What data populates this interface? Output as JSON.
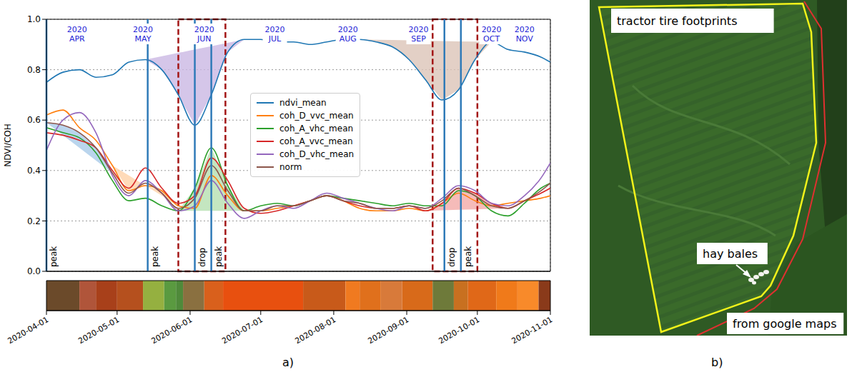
{
  "chart_data": {
    "type": "line",
    "panel_label": "a)",
    "y_label": "NDVI/COH",
    "grid": true,
    "legend": "center",
    "tick_labels": "y",
    "x": [
      "2020-04-01",
      "2020-04-08",
      "2020-04-15",
      "2020-04-22",
      "2020-04-29",
      "2020-05-06",
      "2020-05-13",
      "2020-05-20",
      "2020-05-27",
      "2020-06-03",
      "2020-06-10",
      "2020-06-17",
      "2020-06-24",
      "2020-07-01",
      "2020-07-08",
      "2020-07-15",
      "2020-07-22",
      "2020-07-29",
      "2020-08-05",
      "2020-08-12",
      "2020-08-19",
      "2020-08-26",
      "2020-09-02",
      "2020-09-09",
      "2020-09-16",
      "2020-09-23",
      "2020-09-30",
      "2020-10-07",
      "2020-10-14",
      "2020-10-21",
      "2020-10-28",
      "2020-11-01"
    ],
    "xlim": [
      "2020-04-01",
      "2020-11-01"
    ],
    "xticks": [
      "2020-04-01",
      "2020-05-01",
      "2020-06-01",
      "2020-07-01",
      "2020-08-01",
      "2020-09-01",
      "2020-10-01",
      "2020-11-01"
    ],
    "ylim": [
      0,
      1
    ],
    "yticks": [
      {
        "value": 0,
        "label": "0.0"
      },
      0.2,
      0.4,
      0.6,
      0.8,
      {
        "value": 1,
        "label": "1.0"
      }
    ],
    "series": [
      {
        "name": "ndvi_mean",
        "color": "#1f77b4",
        "values": [
          0.75,
          0.79,
          0.8,
          0.77,
          0.78,
          0.83,
          0.84,
          0.8,
          0.7,
          0.58,
          0.7,
          0.87,
          0.92,
          0.92,
          0.91,
          0.91,
          0.9,
          0.91,
          0.92,
          0.92,
          0.91,
          0.89,
          0.84,
          0.76,
          0.68,
          0.72,
          0.84,
          0.91,
          0.88,
          0.87,
          0.85,
          0.83
        ]
      },
      {
        "name": "coh_D_vvc_mean",
        "color": "#ff7f0e",
        "values": [
          0.62,
          0.64,
          0.57,
          0.52,
          0.42,
          0.32,
          0.34,
          0.32,
          0.26,
          0.25,
          0.38,
          0.3,
          0.24,
          0.24,
          0.25,
          0.26,
          0.28,
          0.3,
          0.28,
          0.25,
          0.24,
          0.24,
          0.25,
          0.24,
          0.27,
          0.31,
          0.28,
          0.26,
          0.27,
          0.28,
          0.29,
          0.3
        ]
      },
      {
        "name": "coh_A_vhc_mean",
        "color": "#2ca02c",
        "values": [
          0.57,
          0.55,
          0.53,
          0.47,
          0.36,
          0.28,
          0.29,
          0.26,
          0.24,
          0.33,
          0.49,
          0.34,
          0.24,
          0.26,
          0.27,
          0.26,
          0.28,
          0.3,
          0.29,
          0.28,
          0.27,
          0.26,
          0.27,
          0.26,
          0.26,
          0.32,
          0.3,
          0.24,
          0.22,
          0.27,
          0.33,
          0.35
        ]
      },
      {
        "name": "coh_A_vvc_mean",
        "color": "#d62728",
        "values": [
          0.55,
          0.54,
          0.52,
          0.49,
          0.4,
          0.33,
          0.41,
          0.33,
          0.27,
          0.3,
          0.45,
          0.36,
          0.25,
          0.23,
          0.24,
          0.26,
          0.28,
          0.3,
          0.28,
          0.26,
          0.25,
          0.25,
          0.26,
          0.24,
          0.27,
          0.33,
          0.31,
          0.27,
          0.25,
          0.28,
          0.31,
          0.33
        ]
      },
      {
        "name": "coh_D_vhc_mean",
        "color": "#9467bd",
        "values": [
          0.48,
          0.6,
          0.63,
          0.55,
          0.38,
          0.3,
          0.36,
          0.31,
          0.24,
          0.26,
          0.36,
          0.27,
          0.21,
          0.24,
          0.26,
          0.25,
          0.28,
          0.31,
          0.29,
          0.27,
          0.25,
          0.24,
          0.26,
          0.25,
          0.29,
          0.34,
          0.32,
          0.27,
          0.26,
          0.3,
          0.37,
          0.43
        ]
      },
      {
        "name": "norm",
        "color": "#8c564b",
        "values": [
          0.59,
          0.58,
          0.55,
          0.49,
          0.39,
          0.31,
          0.35,
          0.31,
          0.25,
          0.29,
          0.42,
          0.32,
          0.24,
          0.24,
          0.26,
          0.26,
          0.28,
          0.3,
          0.28,
          0.27,
          0.25,
          0.25,
          0.26,
          0.25,
          0.28,
          0.33,
          0.3,
          0.26,
          0.25,
          0.28,
          0.32,
          0.35
        ]
      }
    ],
    "shaded": [
      {
        "series": "norm",
        "start": "2020-04-01",
        "end": "2020-04-29",
        "color": "#a9cbe8"
      },
      {
        "series": "coh_D_vvc_mean",
        "start": "2020-04-29",
        "end": "2020-05-27",
        "color": "#ffd2a8"
      },
      {
        "series": "ndvi_mean",
        "start": "2020-05-13",
        "end": "2020-06-24",
        "color": "#cbb8e3"
      },
      {
        "series": "coh_A_vhc_mean",
        "start": "2020-05-27",
        "end": "2020-06-24",
        "color": "#b5e0b0"
      },
      {
        "series": "ndvi_mean",
        "start": "2020-08-12",
        "end": "2020-10-07",
        "color": "#dcc4b8"
      },
      {
        "series": "coh_A_vvc_mean",
        "start": "2020-09-09",
        "end": "2020-10-14",
        "color": "#f2aaa8"
      }
    ],
    "events": [
      {
        "x": "2020-04-01",
        "label": "peak"
      },
      {
        "x": "2020-05-14",
        "label": "peak"
      },
      {
        "x": "2020-06-03",
        "label": "drop"
      },
      {
        "x": "2020-06-10",
        "label": "peak"
      },
      {
        "x": "2020-09-17",
        "label": "drop"
      },
      {
        "x": "2020-09-24",
        "label": "peak"
      }
    ],
    "highlights": [
      {
        "start": "2020-05-27",
        "end": "2020-06-16"
      },
      {
        "start": "2020-09-12",
        "end": "2020-10-01"
      }
    ],
    "month_labels": [
      {
        "x": "2020-04-14",
        "label": [
          "2020",
          "APR"
        ]
      },
      {
        "x": "2020-05-12",
        "label": [
          "2020",
          "MAY"
        ]
      },
      {
        "x": "2020-06-07",
        "label": [
          "2020",
          "JUN"
        ]
      },
      {
        "x": "2020-07-07",
        "label": [
          "2020",
          "JUL"
        ]
      },
      {
        "x": "2020-08-07",
        "label": [
          "2020",
          "AUG"
        ]
      },
      {
        "x": "2020-09-06",
        "label": [
          "2020",
          "SEP"
        ]
      },
      {
        "x": "2020-10-07",
        "label": [
          "2020",
          "OCT"
        ]
      },
      {
        "x": "2020-10-21",
        "label": [
          "2020",
          "NOV"
        ]
      }
    ],
    "color_strip": {
      "xlim": [
        "2020-04-01",
        "2020-11-01"
      ],
      "xticks": [
        "2020-04-01",
        "2020-05-01",
        "2020-06-01",
        "2020-07-01",
        "2020-08-01",
        "2020-09-01",
        "2020-10-01",
        "2020-11-01"
      ],
      "cells": [
        {
          "start": "2020-04-01",
          "end": "2020-04-15",
          "color": "#6b4a2a"
        },
        {
          "start": "2020-04-15",
          "end": "2020-04-22",
          "color": "#b0553a"
        },
        {
          "start": "2020-04-22",
          "end": "2020-05-01",
          "color": "#a8401a"
        },
        {
          "start": "2020-05-01",
          "end": "2020-05-12",
          "color": "#b5501e"
        },
        {
          "start": "2020-05-12",
          "end": "2020-05-21",
          "color": "#95b040"
        },
        {
          "start": "2020-05-21",
          "end": "2020-05-26",
          "color": "#5a9a40"
        },
        {
          "start": "2020-05-26",
          "end": "2020-05-29",
          "color": "#4f8a3a"
        },
        {
          "start": "2020-05-29",
          "end": "2020-06-07",
          "color": "#8a7040"
        },
        {
          "start": "2020-06-07",
          "end": "2020-06-15",
          "color": "#d9601c"
        },
        {
          "start": "2020-06-15",
          "end": "2020-07-19",
          "color": "#e8500f"
        },
        {
          "start": "2020-07-19",
          "end": "2020-08-06",
          "color": "#c85a1a"
        },
        {
          "start": "2020-08-06",
          "end": "2020-08-12",
          "color": "#f07a20"
        },
        {
          "start": "2020-08-12",
          "end": "2020-08-21",
          "color": "#e0701c"
        },
        {
          "start": "2020-08-21",
          "end": "2020-08-30",
          "color": "#d87a3a"
        },
        {
          "start": "2020-08-30",
          "end": "2020-09-12",
          "color": "#d86a1a"
        },
        {
          "start": "2020-09-12",
          "end": "2020-09-21",
          "color": "#6e7a3a"
        },
        {
          "start": "2020-09-21",
          "end": "2020-09-27",
          "color": "#c87020"
        },
        {
          "start": "2020-09-27",
          "end": "2020-10-09",
          "color": "#e06818"
        },
        {
          "start": "2020-10-09",
          "end": "2020-10-18",
          "color": "#f07a1a"
        },
        {
          "start": "2020-10-18",
          "end": "2020-10-27",
          "color": "#f88a2a"
        },
        {
          "start": "2020-10-27",
          "end": "2020-11-01",
          "color": "#8a3a1a"
        }
      ]
    }
  },
  "panel_b": {
    "label": "b)",
    "annotations": {
      "top": "tractor tire footprints",
      "pointer": "hay bales",
      "credit": "from google maps"
    }
  }
}
